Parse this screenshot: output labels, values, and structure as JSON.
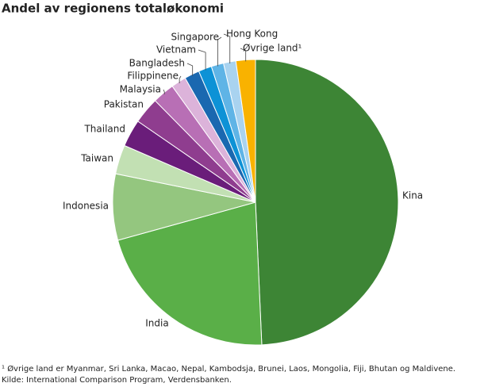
{
  "chart_data": {
    "type": "pie",
    "title": "Andel av regionens totaløkonomi",
    "categories": [
      "Kina",
      "India",
      "Indonesia",
      "Taiwan",
      "Thailand",
      "Pakistan",
      "Malaysia",
      "Filippinene",
      "Bangladesh",
      "Vietnam",
      "Singapore",
      "Hong Kong",
      "Øvrige land¹"
    ],
    "values": [
      49.3,
      21.4,
      7.5,
      3.3,
      3.1,
      3.0,
      2.5,
      1.7,
      1.7,
      1.5,
      1.4,
      1.4,
      2.2
    ],
    "colors": [
      "#3d8535",
      "#5aaf48",
      "#94c67f",
      "#c2e0b3",
      "#6a1d7a",
      "#8f3d8f",
      "#b86fb5",
      "#dcb3da",
      "#1a68b0",
      "#0d92d6",
      "#5fb4e6",
      "#a9d3f0",
      "#f9b200"
    ],
    "footnote": "¹ Øvrige land er Myanmar, Sri Lanka, Macao, Nepal, Kambodsja, Brunei, Laos, Mongolia, Fiji, Bhutan og Maldivene.",
    "source": "Kilde: International Comparison Program, Verdensbanken."
  }
}
